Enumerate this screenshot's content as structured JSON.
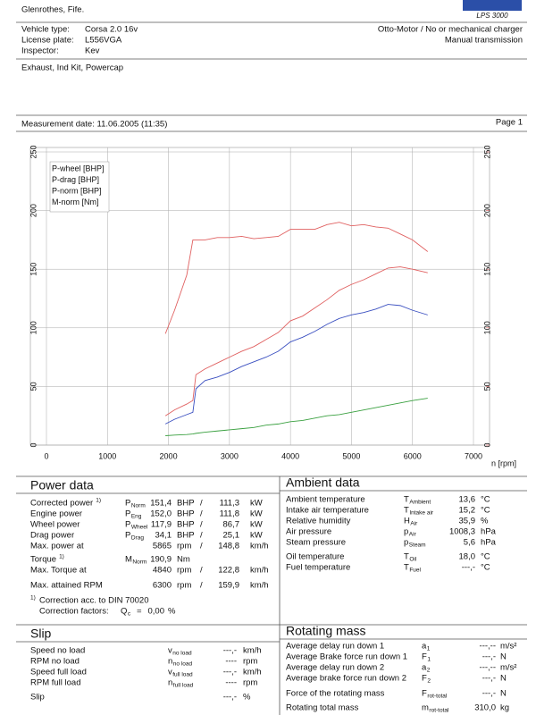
{
  "header": {
    "address": "Glenrothes, Fife.",
    "logo": "LPS 3000"
  },
  "vehicle": {
    "rows": [
      {
        "label": "Vehicle type:",
        "value": "Corsa 2.0 16v"
      },
      {
        "label": "License plate:",
        "value": "L556VGA"
      },
      {
        "label": "Inspector:",
        "value": "Kev"
      }
    ],
    "engine": "Otto-Motor / No or mechanical charger",
    "transmission": "Manual transmission",
    "remarks": "Exhaust, Ind Kit, Powercap"
  },
  "measurement": {
    "date": "Measurement date: 11.06.2005 (11:35)",
    "page": "Page 1"
  },
  "chart_data": {
    "type": "line",
    "x": [
      1950,
      2100,
      2300,
      2400,
      2450,
      2600,
      2800,
      3000,
      3200,
      3400,
      3600,
      3800,
      4000,
      4200,
      4400,
      4600,
      4800,
      5000,
      5200,
      5400,
      5600,
      5800,
      6000,
      6250
    ],
    "xlim": [
      0,
      7000
    ],
    "xticks": [
      0,
      1000,
      2000,
      3000,
      4000,
      5000,
      6000,
      7000
    ],
    "xlabel": "n [rpm]",
    "ylim": [
      0,
      250
    ],
    "yticks": [
      0,
      50,
      100,
      150,
      200,
      250
    ],
    "y2lim": [
      0,
      250
    ],
    "y2ticks": [
      0,
      50,
      100,
      150,
      200,
      250
    ],
    "y2color": "#e06060",
    "grid": true,
    "legend": "upper left",
    "series": [
      {
        "name": "P-wheel [BHP]",
        "color": "#3a4fc0",
        "values": [
          18,
          22,
          26,
          28,
          48,
          55,
          58,
          62,
          67,
          71,
          75,
          80,
          88,
          92,
          97,
          103,
          108,
          111,
          113,
          116,
          120,
          119,
          115,
          111
        ]
      },
      {
        "name": "P-drag [BHP]",
        "color": "#3aa040",
        "values": [
          8,
          8.5,
          9,
          9.5,
          10,
          11,
          12,
          13,
          14,
          15,
          17,
          18,
          20,
          21,
          23,
          25,
          26,
          28,
          30,
          32,
          34,
          36,
          38,
          40
        ]
      },
      {
        "name": "P-norm [BHP]",
        "color": "#e06060",
        "values": [
          25,
          30,
          35,
          38,
          60,
          65,
          70,
          75,
          80,
          84,
          90,
          96,
          106,
          110,
          117,
          124,
          132,
          137,
          141,
          146,
          151,
          152,
          150,
          147
        ]
      },
      {
        "name": "M-norm [Nm]",
        "color": "#e06060",
        "axis": "y2",
        "values": [
          95,
          115,
          145,
          175,
          175,
          175,
          177,
          177,
          178,
          176,
          177,
          178,
          184,
          184,
          184,
          188,
          190,
          187,
          188,
          186,
          185,
          180,
          175,
          165
        ]
      }
    ]
  },
  "power_data": {
    "title": "Power data",
    "rows": [
      {
        "label": "Corrected power",
        "note": "1)",
        "symbol": "P",
        "sub": "Norm",
        "v1": "151,4",
        "u1": "BHP",
        "sep": "/",
        "v2": "111,3",
        "u2": "kW",
        "color": "#e04848"
      },
      {
        "label": "Engine power",
        "symbol": "P",
        "sub": "Eng",
        "v1": "152,0",
        "u1": "BHP",
        "sep": "/",
        "v2": "111,8",
        "u2": "kW",
        "color": "#e04848"
      },
      {
        "label": "Wheel power",
        "symbol": "P",
        "sub": "Wheel",
        "v1": "117,9",
        "u1": "BHP",
        "sep": "/",
        "v2": "86,7",
        "u2": "kW",
        "color": "#3a4fc0"
      },
      {
        "label": "Drag power",
        "symbol": "P",
        "sub": "Drag",
        "v1": "34,1",
        "u1": "BHP",
        "sep": "/",
        "v2": "25,1",
        "u2": "kW",
        "color": "#3aa040"
      },
      {
        "label": "Max. power at",
        "v1": "5865",
        "u1": "rpm",
        "sep": "/",
        "v2": "148,8",
        "u2": "km/h",
        "color": "#000000"
      },
      {
        "label": "Torque",
        "note": "1)",
        "symbol": "M",
        "sub": "Norm",
        "v1": "190,9",
        "u1": "Nm",
        "color": "#e04848"
      },
      {
        "label": "Max. Torque at",
        "v1": "4840",
        "u1": "rpm",
        "sep": "/",
        "v2": "122,8",
        "u2": "km/h",
        "color": "#000000"
      },
      {
        "label": "Max. attained RPM",
        "v1": "6300",
        "u1": "rpm",
        "sep": "/",
        "v2": "159,9",
        "u2": "km/h",
        "color": "#000000"
      }
    ],
    "footnote": {
      "note": "1)",
      "label": "Correction acc. to DIN 70020"
    },
    "correction": {
      "label": "Correction factors:",
      "symbol": "Q",
      "sub": "c",
      "eq": "=",
      "value": "0,00",
      "unit": "%"
    }
  },
  "ambient_data": {
    "title": "Ambient data",
    "rows": [
      {
        "label": "Ambient temperature",
        "symbol": "T",
        "sub": "Ambient",
        "value": "13,6",
        "unit": "°C"
      },
      {
        "label": "Intake air temperature",
        "symbol": "T",
        "sub": "Intake air",
        "value": "15,2",
        "unit": "°C"
      },
      {
        "label": "Relative humidity",
        "symbol": "H",
        "sub": "Air",
        "value": "35,9",
        "unit": "%"
      },
      {
        "label": "Air pressure",
        "symbol": "p",
        "sub": "Air",
        "value": "1008,3",
        "unit": "hPa"
      },
      {
        "label": "Steam pressure",
        "symbol": "p",
        "sub": "Steam",
        "value": "5,6",
        "unit": "hPa"
      },
      {
        "label": "Oil temperature",
        "symbol": "T",
        "sub": "Oil",
        "value": "18,0",
        "unit": "°C"
      },
      {
        "label": "Fuel temperature",
        "symbol": "T",
        "sub": "Fuel",
        "value": "---,-",
        "unit": "°C"
      }
    ]
  },
  "slip": {
    "title": "Slip",
    "rows": [
      {
        "label": "Speed no load",
        "symbol": "v",
        "sub": "no load",
        "value": "---,-",
        "unit": "km/h"
      },
      {
        "label": "RPM no load",
        "symbol": "n",
        "sub": "no load",
        "value": "----",
        "unit": "rpm"
      },
      {
        "label": "Speed full load",
        "symbol": "v",
        "sub": "full load",
        "value": "---,-",
        "unit": "km/h"
      },
      {
        "label": "RPM full load",
        "symbol": "n",
        "sub": "full load",
        "value": "----",
        "unit": "rpm"
      },
      {
        "label": "Slip",
        "value": "---,-",
        "unit": "%"
      }
    ]
  },
  "rotating_mass": {
    "title": "Rotating mass",
    "rows": [
      {
        "label": "Average delay run down 1",
        "symbol": "a",
        "sub": "1",
        "value": "---,--",
        "unit": "m/s²"
      },
      {
        "label": "Average Brake force run down 1",
        "symbol": "F",
        "sub": "1",
        "value": "---,-",
        "unit": "N"
      },
      {
        "label": "Average delay run down 2",
        "symbol": "a",
        "sub": "2",
        "value": "---,--",
        "unit": "m/s²"
      },
      {
        "label": "Average brake force run down 2",
        "symbol": "F",
        "sub": "2",
        "value": "---,-",
        "unit": "N"
      },
      {
        "label": "Force of the rotating mass",
        "symbol": "F",
        "sub": "rot-total",
        "value": "---,-",
        "unit": "N"
      },
      {
        "label": "Rotating total mass",
        "symbol": "m",
        "sub": "rot-total",
        "value": "310,0",
        "unit": "kg"
      }
    ]
  }
}
